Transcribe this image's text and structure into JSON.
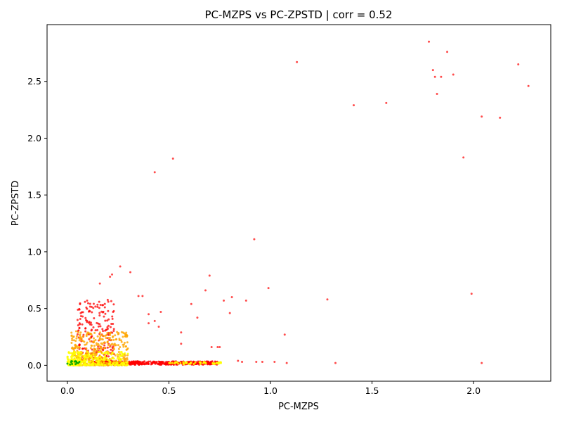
{
  "chart_data": {
    "type": "scatter",
    "title": "PC-MZPS vs PC-ZPSTD | corr = 0.52",
    "xlabel": "PC-MZPS",
    "ylabel": "PC-ZPSTD",
    "xlim": [
      -0.1,
      2.38
    ],
    "ylim": [
      -0.14,
      3.0
    ],
    "xticks": [
      0.0,
      0.5,
      1.0,
      1.5,
      2.0
    ],
    "yticks": [
      0.0,
      0.5,
      1.0,
      1.5,
      2.0,
      2.5
    ],
    "xtick_labels": [
      "0.0",
      "0.5",
      "1.0",
      "1.5",
      "2.0"
    ],
    "ytick_labels": [
      "0.0",
      "0.5",
      "1.0",
      "1.5",
      "2.0",
      "2.5"
    ],
    "grid": false,
    "legend": false,
    "point_colors": [
      "#ff0000",
      "#ffa500",
      "#ffff00",
      "#00aa00"
    ],
    "series": [
      {
        "color": "#ff0000",
        "x": [
          1.78,
          1.87,
          1.8,
          1.81,
          1.84,
          1.9,
          1.82,
          2.22,
          2.27,
          1.13,
          1.41,
          1.57,
          2.04,
          2.13,
          1.95,
          0.52,
          0.43,
          0.92,
          0.26,
          0.31,
          0.22,
          0.21,
          0.16,
          0.7,
          0.68,
          0.81,
          0.77,
          0.8,
          0.88,
          0.99,
          0.35,
          0.37,
          0.61,
          0.64,
          0.4,
          0.46,
          0.43,
          0.4,
          0.45,
          0.56,
          0.56,
          1.28,
          1.07,
          0.71,
          0.74,
          0.75,
          1.99,
          2.04,
          1.32,
          1.08,
          0.84,
          0.86,
          0.93,
          0.96,
          1.02
        ],
        "y": [
          2.85,
          2.76,
          2.6,
          2.54,
          2.54,
          2.56,
          2.39,
          2.65,
          2.46,
          2.67,
          2.29,
          2.31,
          2.19,
          2.18,
          1.83,
          1.82,
          1.7,
          1.11,
          0.87,
          0.82,
          0.8,
          0.78,
          0.72,
          0.79,
          0.66,
          0.6,
          0.57,
          0.46,
          0.57,
          0.68,
          0.61,
          0.61,
          0.54,
          0.42,
          0.45,
          0.47,
          0.39,
          0.37,
          0.34,
          0.29,
          0.19,
          0.58,
          0.27,
          0.16,
          0.16,
          0.16,
          0.63,
          0.02,
          0.02,
          0.02,
          0.04,
          0.03,
          0.03,
          0.03,
          0.03
        ]
      }
    ]
  }
}
